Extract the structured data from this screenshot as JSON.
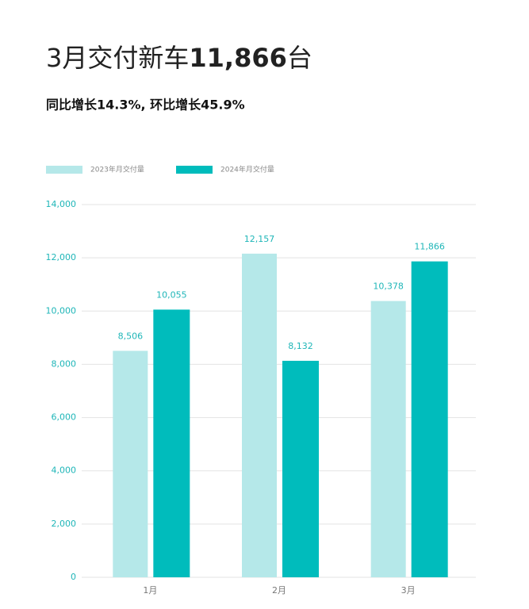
{
  "chart_data": {
    "type": "bar",
    "title": [
      "3月交付新车",
      "11,866",
      "台"
    ],
    "subtitle": "同比增长14.3%, 环比增长45.9%",
    "categories": [
      "1月",
      "2月",
      "3月"
    ],
    "series": [
      {
        "name": "2023年月交付量",
        "color": "#b5e8e9",
        "values": [
          8506,
          12157,
          10378
        ],
        "value_labels": [
          "8,506",
          "12,157",
          "10,378"
        ]
      },
      {
        "name": "2024年月交付量",
        "color": "#00bcbc",
        "values": [
          10055,
          8132,
          11866
        ],
        "value_labels": [
          "10,055",
          "8,132",
          "11,866"
        ]
      }
    ],
    "ylim": [
      0,
      14000
    ],
    "yticks": [
      0,
      {
        "value": 2000,
        "label": "2,000"
      },
      {
        "value": 4000,
        "label": "4,000"
      },
      {
        "value": 6000,
        "label": "6,000"
      },
      {
        "value": 8000,
        "label": "8,000"
      },
      {
        "value": 10000,
        "label": "10,000"
      },
      {
        "value": 12000,
        "label": "12,000"
      },
      {
        "value": 14000,
        "label": "14,000"
      }
    ],
    "grid": true
  }
}
